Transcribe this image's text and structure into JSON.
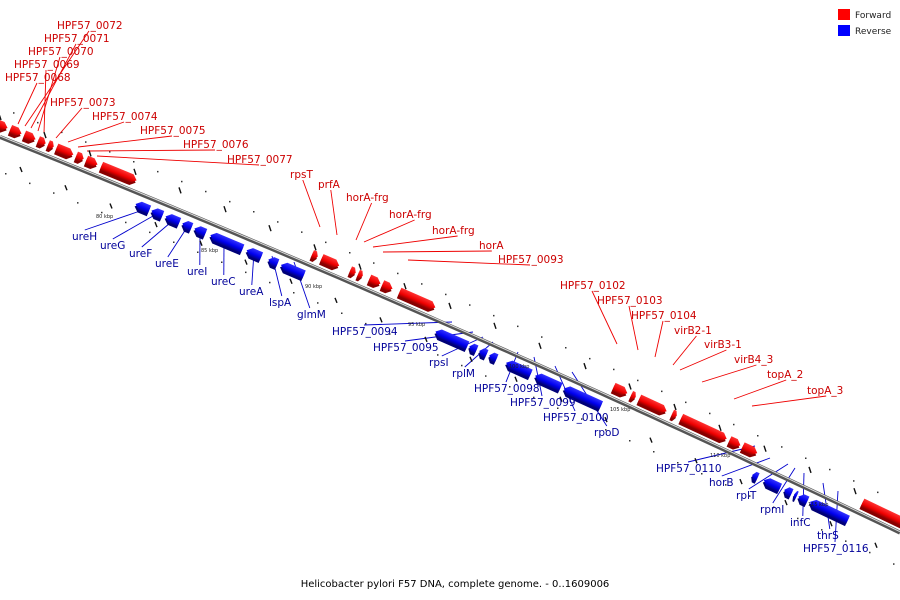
{
  "legend": [
    {
      "label": "Forward",
      "color": "#ff0000"
    },
    {
      "label": "Reverse",
      "color": "#0000ff"
    }
  ],
  "caption": "Helicobacter pylori F57 DNA, complete genome. - 0..1609006",
  "ticks": [
    "80 kbp",
    "85 kbp",
    "90 kbp",
    "95 kbp",
    "100 kbp",
    "105 kbp",
    "110 kbp",
    "115 kbp"
  ],
  "forward_labels": [
    "HPF57_0072",
    "HPF57_0071",
    "HPF57_0070",
    "HPF57_0069",
    "HPF57_0068",
    "HPF57_0073",
    "HPF57_0074",
    "HPF57_0075",
    "HPF57_0076",
    "HPF57_0077",
    "rpsT",
    "prfA",
    "horA-frg",
    "horA-frg",
    "horA-frg",
    "horA",
    "HPF57_0093",
    "HPF57_0102",
    "HPF57_0103",
    "HPF57_0104",
    "virB2-1",
    "virB3-1",
    "virB4_3",
    "topA_2",
    "topA_3"
  ],
  "reverse_labels": [
    "ureH",
    "ureG",
    "ureF",
    "ureE",
    "ureI",
    "ureC",
    "ureA",
    "lspA",
    "glmM",
    "HPF57_0094",
    "HPF57_0095",
    "rpsI",
    "rplM",
    "HPF57_0098",
    "HPF57_0099",
    "HPF57_0100",
    "rpoD",
    "HPF57_0110",
    "horB",
    "rplT",
    "rpmI",
    "infC",
    "thrS",
    "HPF57_0116"
  ]
}
